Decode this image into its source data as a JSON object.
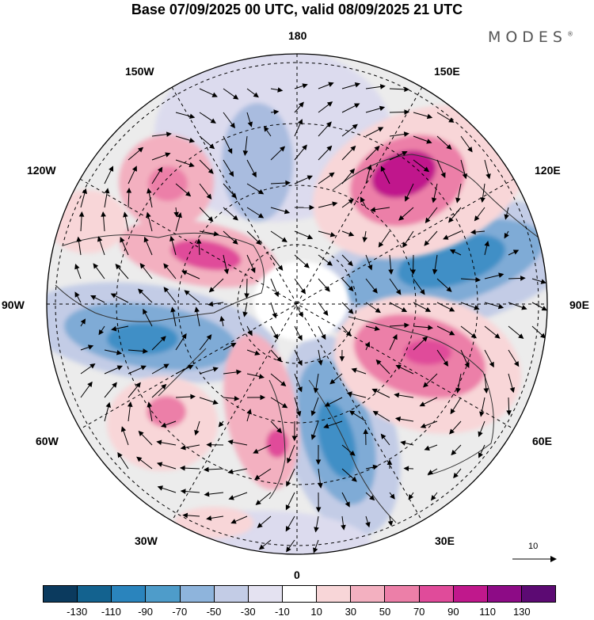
{
  "title": "Base 07/09/2025 00 UTC, valid 08/09/2025 21 UTC",
  "brand": "MODES",
  "brand_mark": "®",
  "lon_labels": {
    "n180": "180",
    "w150": "150W",
    "e150": "150E",
    "w120": "120W",
    "e120": "120E",
    "w90": "90W",
    "e90": "90E",
    "w60": "60W",
    "e60": "60E",
    "w30": "30W",
    "e30": "30E",
    "s0": "0"
  },
  "reference_vector": {
    "label": "10"
  },
  "colorbar": {
    "colors": [
      "#0b3a5e",
      "#13628f",
      "#2a84bd",
      "#4e9cca",
      "#8eb4dc",
      "#c3cce6",
      "#e4e2f1",
      "#ffffff",
      "#f8d6d8",
      "#f3b0c0",
      "#ec7fa8",
      "#e04b9a",
      "#c0188c",
      "#8d0b86",
      "#5c0a73"
    ],
    "labels": [
      "-130",
      "-110",
      "-90",
      "-70",
      "-50",
      "-30",
      "-10",
      "10",
      "30",
      "50",
      "70",
      "90",
      "110",
      "130"
    ]
  }
}
